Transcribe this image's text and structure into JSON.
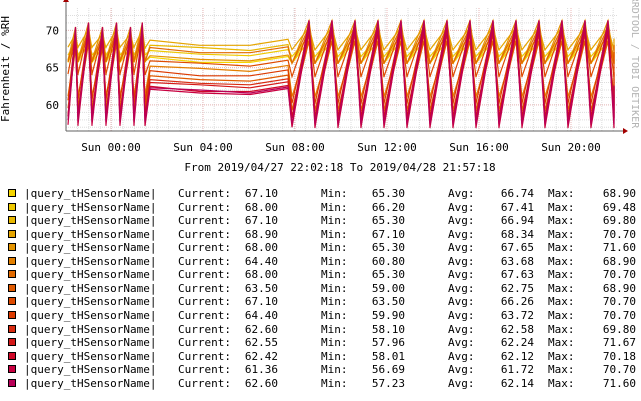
{
  "colors": {
    "background": "#ffffff",
    "plot_background": "#ffffff",
    "grid_major": "#e8b7b7",
    "grid_minor": "#dddddd",
    "axis": "#606060",
    "arrow": "#a30000"
  },
  "chart_data": {
    "type": "line",
    "ylabel": "Fahrenheit / %RH",
    "watermark": "RRDTOOL / TOBI OETIKER",
    "period": "From 2019/04/27 22:02:18 To 2019/04/28 21:57:18",
    "x_ticks": [
      "Sun 00:00",
      "Sun 04:00",
      "Sun 08:00",
      "Sun 12:00",
      "Sun 16:00",
      "Sun 20:00"
    ],
    "y_ticks": [
      "60",
      "65",
      "70"
    ],
    "ylim": [
      56.5,
      73
    ],
    "grid": true,
    "series": [
      {
        "name": "|query_tHSensorName|",
        "color": "#f5d500",
        "current": "67.10",
        "min": "65.30",
        "avg": "66.74",
        "max": "68.90",
        "low": 65.3,
        "high": 68.9,
        "flat": 65.9
      },
      {
        "name": "|query_tHSensorName|",
        "color": "#eec800",
        "current": "68.00",
        "min": "66.20",
        "avg": "67.41",
        "max": "69.48",
        "low": 66.2,
        "high": 69.48,
        "flat": 66.8
      },
      {
        "name": "|query_tHSensorName|",
        "color": "#e8b800",
        "current": "67.10",
        "min": "65.30",
        "avg": "66.94",
        "max": "69.80",
        "low": 65.3,
        "high": 69.8,
        "flat": 67.5
      },
      {
        "name": "|query_tHSensorName|",
        "color": "#e6a500",
        "current": "68.90",
        "min": "67.10",
        "avg": "68.34",
        "max": "70.70",
        "low": 67.1,
        "high": 70.7,
        "flat": 68.2
      },
      {
        "name": "|query_tHSensorName|",
        "color": "#e49400",
        "current": "68.00",
        "min": "65.30",
        "avg": "67.65",
        "max": "71.60",
        "low": 65.3,
        "high": 71.6,
        "flat": 66.1
      },
      {
        "name": "|query_tHSensorName|",
        "color": "#e37f00",
        "current": "64.40",
        "min": "60.80",
        "avg": "63.68",
        "max": "68.90",
        "low": 60.8,
        "high": 68.9,
        "flat": 64.7
      },
      {
        "name": "|query_tHSensorName|",
        "color": "#e26a00",
        "current": "68.00",
        "min": "65.30",
        "avg": "67.63",
        "max": "70.70",
        "low": 65.3,
        "high": 70.7,
        "flat": 67.2
      },
      {
        "name": "|query_tHSensorName|",
        "color": "#e05a00",
        "current": "63.50",
        "min": "59.00",
        "avg": "62.75",
        "max": "68.90",
        "low": 59.0,
        "high": 68.9,
        "flat": 63.4
      },
      {
        "name": "|query_tHSensorName|",
        "color": "#de4a00",
        "current": "67.10",
        "min": "63.50",
        "avg": "66.26",
        "max": "70.70",
        "low": 63.5,
        "high": 70.7,
        "flat": 65.4
      },
      {
        "name": "|query_tHSensorName|",
        "color": "#dc3a00",
        "current": "64.40",
        "min": "59.90",
        "avg": "63.72",
        "max": "70.70",
        "low": 59.9,
        "high": 70.7,
        "flat": 64.1
      },
      {
        "name": "|query_tHSensorName|",
        "color": "#d82a10",
        "current": "62.60",
        "min": "58.10",
        "avg": "62.58",
        "max": "69.80",
        "low": 58.1,
        "high": 69.8,
        "flat": 62.9
      },
      {
        "name": "|query_tHSensorName|",
        "color": "#d41818",
        "current": "62.55",
        "min": "57.96",
        "avg": "62.24",
        "max": "71.67",
        "low": 57.96,
        "high": 71.67,
        "flat": 62.5
      },
      {
        "name": "|query_tHSensorName|",
        "color": "#d00828",
        "current": "62.42",
        "min": "58.01",
        "avg": "62.12",
        "max": "70.18",
        "low": 58.01,
        "high": 70.18,
        "flat": 62.0
      },
      {
        "name": "|query_tHSensorName|",
        "color": "#c80040",
        "current": "61.36",
        "min": "56.69",
        "avg": "61.72",
        "max": "70.70",
        "low": 56.69,
        "high": 70.7,
        "flat": 61.6
      },
      {
        "name": "|query_tHSensorName|",
        "color": "#b80058",
        "current": "62.60",
        "min": "57.23",
        "avg": "62.14",
        "max": "71.60",
        "low": 57.23,
        "high": 71.6,
        "flat": 61.8
      }
    ]
  },
  "legend": {
    "current_label": "Current:",
    "min_label": "Min:",
    "avg_label": "Avg:",
    "max_label": "Max:"
  }
}
